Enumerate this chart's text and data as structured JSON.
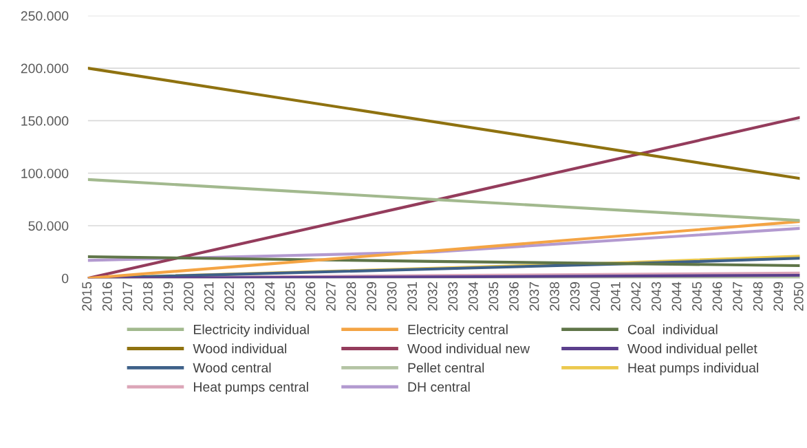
{
  "chart_data": {
    "type": "line",
    "xlim": [
      2015,
      2050
    ],
    "xticks": [
      2015,
      2016,
      2017,
      2018,
      2019,
      2020,
      2021,
      2022,
      2023,
      2024,
      2025,
      2026,
      2027,
      2028,
      2029,
      2030,
      2031,
      2032,
      2033,
      2034,
      2035,
      2036,
      2037,
      2038,
      2039,
      2040,
      2041,
      2042,
      2043,
      2044,
      2045,
      2046,
      2047,
      2048,
      2049,
      2050
    ],
    "ylim": [
      0,
      250000
    ],
    "yticks": [
      {
        "value": 0,
        "label": "0"
      },
      {
        "value": 50000,
        "label": "50.000"
      },
      {
        "value": 100000,
        "label": "100.000"
      },
      {
        "value": 150000,
        "label": "150.000"
      },
      {
        "value": 200000,
        "label": "200.000"
      },
      {
        "value": 250000,
        "label": "250.000"
      }
    ],
    "grid": "y",
    "legend": "bottom",
    "marker": "none",
    "line_style": "solid",
    "series": [
      {
        "name": "Electricity individual",
        "color": "#a2b98e",
        "x": [
          2015,
          2032,
          2050
        ],
        "values": [
          94000,
          75000,
          55000
        ]
      },
      {
        "name": "Electricity central",
        "color": "#f4a444",
        "x": [
          2015,
          2032,
          2050
        ],
        "values": [
          0,
          26000,
          54000
        ]
      },
      {
        "name": "Coal  individual",
        "color": "#5f7548",
        "x": [
          2015,
          2032,
          2050
        ],
        "values": [
          20500,
          16000,
          12000
        ]
      },
      {
        "name": "Wood individual",
        "color": "#8f7210",
        "x": [
          2015,
          2050
        ],
        "values": [
          200000,
          95000
        ]
      },
      {
        "name": "Wood individual new",
        "color": "#943c5c",
        "x": [
          2015,
          2032,
          2050
        ],
        "values": [
          0,
          74000,
          153000
        ]
      },
      {
        "name": "Wood individual pellet",
        "color": "#5b3f8c",
        "x": [
          2015,
          2032,
          2050
        ],
        "values": [
          0,
          1300,
          2800
        ]
      },
      {
        "name": "Wood central",
        "color": "#3e6189",
        "x": [
          2015,
          2041,
          2050
        ],
        "values": [
          0,
          13500,
          19000
        ]
      },
      {
        "name": "Pellet central",
        "color": "#b4c4a4",
        "x": [
          2015,
          2050
        ],
        "values": [
          0,
          500
        ]
      },
      {
        "name": "Heat pumps individual",
        "color": "#ecc94e",
        "x": [
          2015,
          2041,
          2050
        ],
        "values": [
          0,
          14500,
          21000
        ]
      },
      {
        "name": "Heat pumps central",
        "color": "#dca6b8",
        "x": [
          2015,
          2032,
          2050
        ],
        "values": [
          0,
          2500,
          4900
        ]
      },
      {
        "name": "DH central",
        "color": "#b39ad0",
        "x": [
          2015,
          2032,
          2050
        ],
        "values": [
          17000,
          25000,
          47400
        ]
      }
    ]
  }
}
